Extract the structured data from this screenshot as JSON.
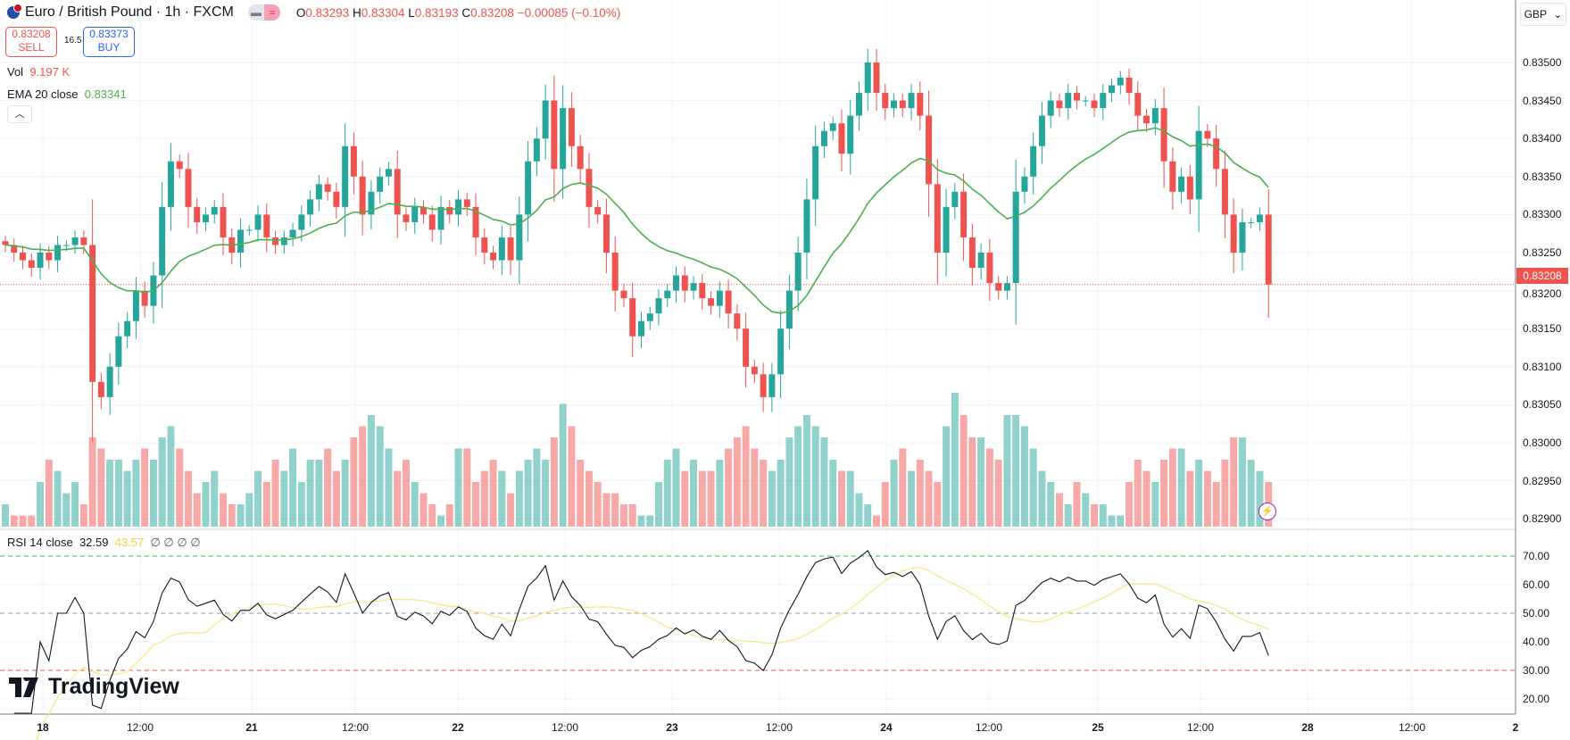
{
  "header": {
    "title": "Euro / British Pound · 1h · FXCM",
    "open_label": "O",
    "open": "0.83293",
    "high_label": "H",
    "high": "0.83304",
    "low_label": "L",
    "low": "0.83193",
    "close_label": "C",
    "close": "0.83208",
    "change": "−0.00085 (−0.10%)"
  },
  "trade": {
    "sell_price": "0.83208",
    "sell_label": "SELL",
    "spread": "16.5",
    "buy_price": "0.83373",
    "buy_label": "BUY"
  },
  "indicators": {
    "vol_label": "Vol",
    "vol_value": "9.197 K",
    "ema_label": "EMA 20 close",
    "ema_value": "0.83341",
    "rsi_label": "RSI 14 close",
    "rsi_value": "32.59",
    "rsi_ma_value": "43.57",
    "rsi_extra": "∅ ∅ ∅ ∅",
    "collapse": "︿"
  },
  "currency": "GBP",
  "current_price": "0.83208",
  "price_axis": [
    "0.83500",
    "0.83450",
    "0.83400",
    "0.83350",
    "0.83300",
    "0.83250",
    "0.83200",
    "0.83150",
    "0.83100",
    "0.83050",
    "0.83000",
    "0.82950",
    "0.82900"
  ],
  "rsi_axis": [
    "70.00",
    "60.00",
    "50.00",
    "40.00",
    "30.00",
    "20.00"
  ],
  "time_axis": [
    "18",
    "12:00",
    "21",
    "12:00",
    "22",
    "12:00",
    "23",
    "12:00",
    "24",
    "12:00",
    "25",
    "12:00",
    "28",
    "12:00",
    "2"
  ],
  "logo": "TradingView",
  "colors": {
    "up": "#26a69a",
    "down": "#ef5350",
    "ema": "#4caf50",
    "rsi": "#131722",
    "rsi_ma": "#f7e987"
  },
  "chart_data": {
    "type": "candlestick",
    "interval": "1h",
    "closes": [
      0.8326,
      0.8325,
      0.8324,
      0.8323,
      0.8325,
      0.8324,
      0.8326,
      0.8326,
      0.8327,
      0.8326,
      0.8308,
      0.8306,
      0.831,
      0.8314,
      0.8316,
      0.832,
      0.8318,
      0.8322,
      0.8331,
      0.8337,
      0.8336,
      0.8331,
      0.8329,
      0.833,
      0.8331,
      0.8327,
      0.8325,
      0.8328,
      0.8328,
      0.833,
      0.8327,
      0.8326,
      0.8327,
      0.8328,
      0.833,
      0.8332,
      0.8334,
      0.8333,
      0.8331,
      0.8339,
      0.8335,
      0.833,
      0.8333,
      0.8335,
      0.8336,
      0.833,
      0.8329,
      0.8331,
      0.833,
      0.8328,
      0.8331,
      0.833,
      0.8332,
      0.8331,
      0.8327,
      0.8325,
      0.8324,
      0.8327,
      0.8324,
      0.833,
      0.8337,
      0.834,
      0.8345,
      0.8336,
      0.8344,
      0.8339,
      0.8336,
      0.8331,
      0.833,
      0.8325,
      0.832,
      0.8319,
      0.8314,
      0.8316,
      0.8317,
      0.8319,
      0.832,
      0.8322,
      0.832,
      0.8321,
      0.8319,
      0.8318,
      0.832,
      0.8317,
      0.8315,
      0.831,
      0.8309,
      0.8306,
      0.8309,
      0.8315,
      0.832,
      0.8325,
      0.8332,
      0.8339,
      0.8341,
      0.8342,
      0.8338,
      0.8343,
      0.8346,
      0.835,
      0.8346,
      0.8344,
      0.8345,
      0.8344,
      0.8346,
      0.8343,
      0.8334,
      0.8325,
      0.8331,
      0.8333,
      0.8327,
      0.8323,
      0.8325,
      0.8321,
      0.832,
      0.8321,
      0.8333,
      0.8335,
      0.8339,
      0.8343,
      0.8345,
      0.8344,
      0.8346,
      0.8345,
      0.8345,
      0.8344,
      0.8346,
      0.8347,
      0.8348,
      0.8346,
      0.8343,
      0.8342,
      0.8344,
      0.8337,
      0.8333,
      0.8335,
      0.8332,
      0.8341,
      0.834,
      0.8336,
      0.833,
      0.8325,
      0.8329,
      0.8329,
      0.833,
      0.83208
    ],
    "volumes": [
      2,
      1,
      1,
      1,
      4,
      6,
      5,
      3,
      4,
      2,
      8,
      7,
      6,
      6,
      5,
      6,
      7,
      6,
      8,
      9,
      7,
      5,
      3,
      4,
      5,
      3,
      2,
      2,
      3,
      5,
      4,
      6,
      5,
      7,
      4,
      6,
      6,
      7,
      5,
      6,
      8,
      9,
      10,
      9,
      7,
      5,
      6,
      4,
      3,
      2,
      1,
      2,
      7,
      7,
      4,
      5,
      6,
      5,
      3,
      5,
      6,
      7,
      6,
      8,
      11,
      9,
      6,
      5,
      4,
      3,
      3,
      2,
      2,
      1,
      1,
      4,
      6,
      7,
      5,
      6,
      5,
      5,
      6,
      7,
      8,
      9,
      7,
      6,
      5,
      6,
      8,
      9,
      10,
      9,
      8,
      6,
      5,
      5,
      3,
      2,
      1,
      4,
      6,
      7,
      5,
      6,
      5,
      4,
      9,
      12,
      10,
      8,
      8,
      7,
      6,
      10,
      10,
      9,
      7,
      5,
      4,
      3,
      2,
      4,
      3,
      2,
      2,
      1,
      1,
      4,
      6,
      5,
      4,
      6,
      7,
      7,
      5,
      6,
      5,
      4,
      6,
      8,
      8,
      6,
      5,
      4
    ],
    "price_range": [
      0.8288,
      0.8357
    ],
    "rsi_range": [
      15,
      80
    ],
    "rsi_levels": [
      70,
      50,
      30
    ]
  }
}
